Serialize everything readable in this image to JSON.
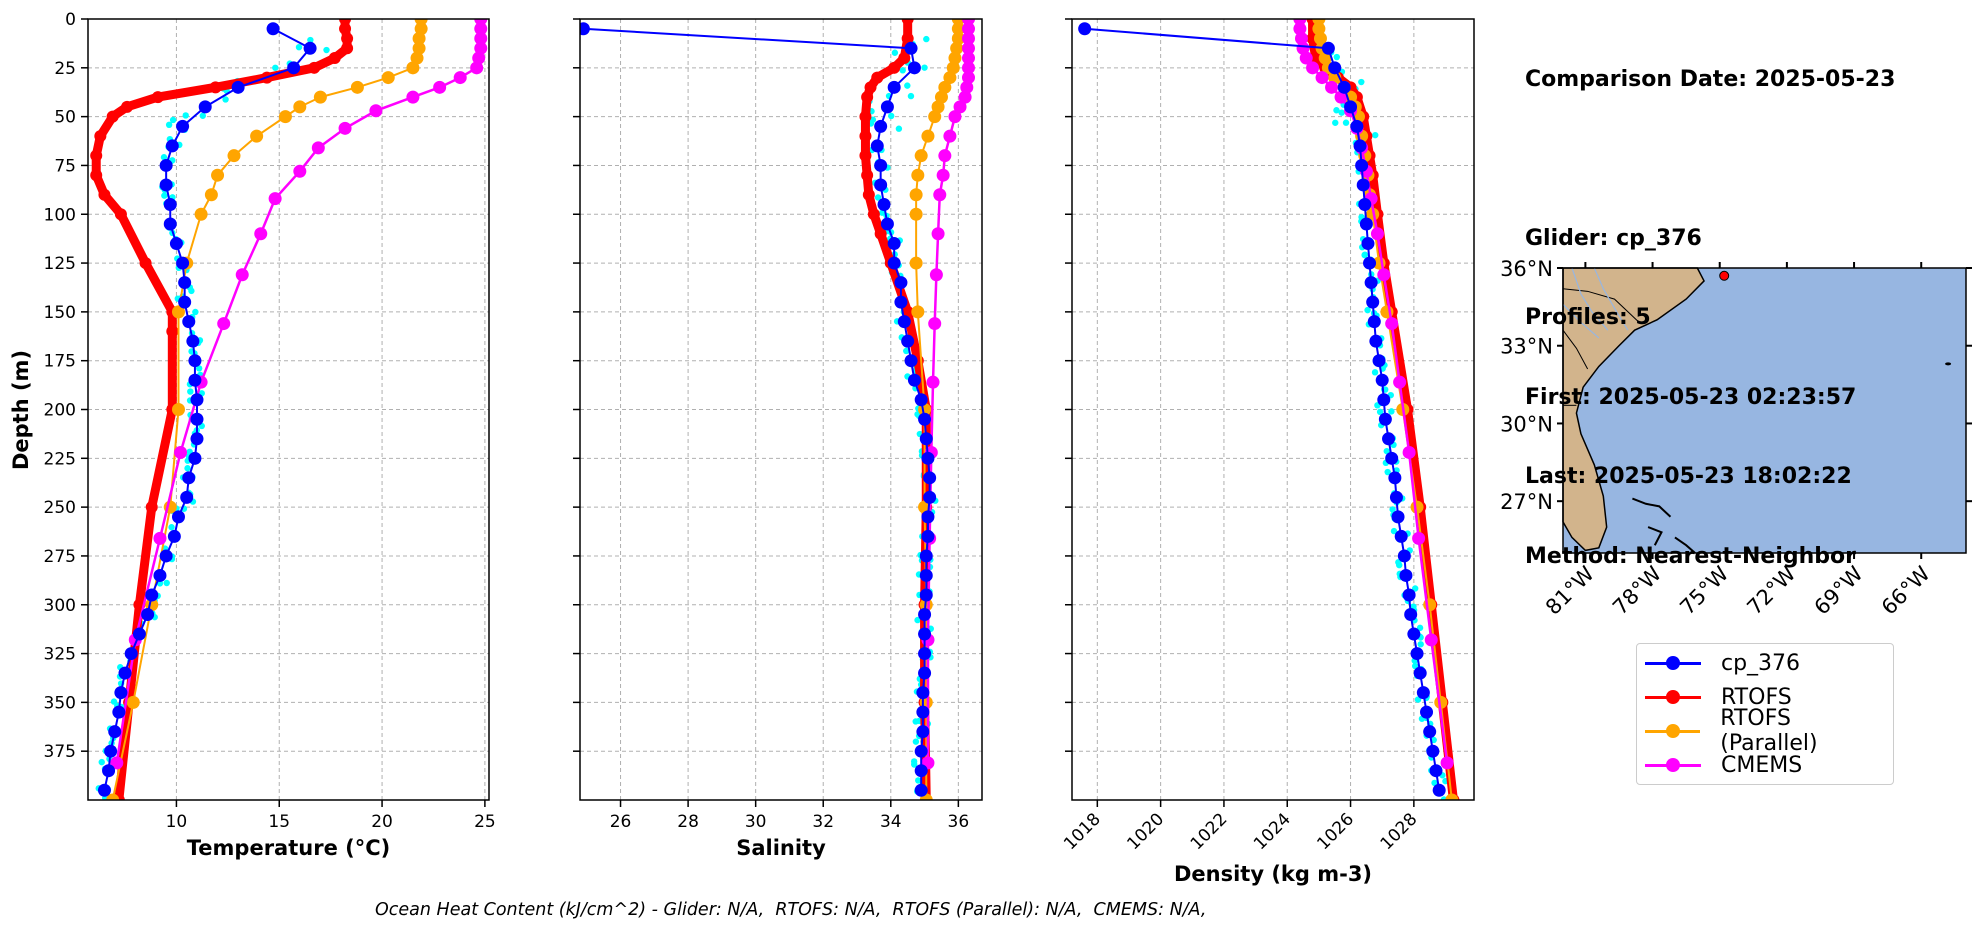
{
  "info": {
    "comparison_date": "Comparison Date: 2025-05-23",
    "glider": "Glider: cp_376",
    "profiles": "Profiles: 5",
    "first": "First: 2025-05-23 02:23:57",
    "last": "Last: 2025-05-23 18:02:22",
    "method": "Method: Nearest-Neighbor"
  },
  "footer": "Ocean Heat Content (kJ/cm^2) - Glider: N/A,  RTOFS: N/A,  RTOFS (Parallel): N/A,  CMEMS: N/A,",
  "legend": [
    {
      "label": "cp_376",
      "color": "#0000ff"
    },
    {
      "label": "RTOFS",
      "color": "#ff0000"
    },
    {
      "label": "RTOFS (Parallel)",
      "color": "#ffa500"
    },
    {
      "label": "CMEMS",
      "color": "#ff00ff"
    }
  ],
  "colors": {
    "glider": "#0000ff",
    "glider_raw": "#00ffff",
    "rtofs": "#ff0000",
    "rtofs_parallel": "#ffa500",
    "cmems": "#ff00ff",
    "land": "#d2b48c",
    "ocean": "#97b6e1"
  },
  "chart_data": [
    {
      "type": "line",
      "title": "",
      "xlabel": "Temperature (°C)",
      "ylabel": "Depth (m)",
      "xlim": [
        5.7,
        25.2
      ],
      "ylim": [
        400,
        0
      ],
      "xticks": [
        10,
        15,
        20,
        25
      ],
      "yticks": [
        0,
        25,
        50,
        75,
        100,
        125,
        150,
        175,
        200,
        225,
        250,
        275,
        300,
        325,
        350,
        375
      ],
      "grid": true,
      "series": [
        {
          "name": "cp_376",
          "depth": [
            5,
            15,
            25,
            35,
            45,
            55,
            65,
            75,
            85,
            95,
            105,
            115,
            125,
            135,
            145,
            155,
            165,
            175,
            185,
            195,
            205,
            215,
            225,
            235,
            245,
            255,
            265,
            275,
            285,
            295,
            305,
            315,
            325,
            335,
            345,
            355,
            365,
            375,
            385,
            395
          ],
          "values": [
            14.7,
            16.5,
            15.7,
            13.0,
            11.4,
            10.3,
            9.8,
            9.5,
            9.5,
            9.7,
            9.7,
            10.0,
            10.3,
            10.4,
            10.4,
            10.6,
            10.8,
            10.9,
            10.9,
            11.0,
            11.0,
            11.0,
            10.9,
            10.6,
            10.5,
            10.1,
            9.9,
            9.5,
            9.2,
            8.8,
            8.6,
            8.2,
            7.8,
            7.5,
            7.3,
            7.2,
            7.0,
            6.8,
            6.7,
            6.5
          ]
        },
        {
          "name": "RTOFS",
          "depth": [
            0,
            5,
            10,
            15,
            20,
            25,
            30,
            35,
            40,
            45,
            50,
            60,
            70,
            80,
            90,
            100,
            125,
            150,
            160,
            200,
            250,
            300,
            350,
            400
          ],
          "values": [
            18.2,
            18.2,
            18.3,
            18.3,
            17.7,
            16.7,
            14.4,
            11.9,
            9.1,
            7.6,
            6.9,
            6.3,
            6.1,
            6.1,
            6.5,
            7.3,
            8.5,
            9.8,
            9.8,
            9.8,
            8.8,
            8.2,
            7.7,
            7.2
          ]
        },
        {
          "name": "RTOFS (Parallel)",
          "depth": [
            0,
            5,
            10,
            15,
            20,
            25,
            30,
            35,
            40,
            45,
            50,
            60,
            70,
            80,
            90,
            100,
            125,
            150,
            200,
            250,
            300,
            350,
            400
          ],
          "values": [
            21.9,
            21.9,
            21.8,
            21.8,
            21.7,
            21.5,
            20.3,
            18.8,
            17.0,
            16.0,
            15.3,
            13.9,
            12.8,
            12.0,
            11.7,
            11.2,
            10.5,
            10.1,
            10.1,
            9.7,
            8.8,
            7.9,
            6.9
          ]
        },
        {
          "name": "CMEMS",
          "depth": [
            0,
            5,
            10,
            15,
            20,
            25,
            30,
            35,
            40,
            47,
            56,
            66,
            78,
            92,
            110,
            131,
            156,
            186,
            222,
            266,
            318,
            381
          ],
          "values": [
            24.8,
            24.8,
            24.8,
            24.8,
            24.7,
            24.6,
            23.8,
            22.8,
            21.5,
            19.7,
            18.2,
            16.9,
            16.0,
            14.8,
            14.1,
            13.2,
            12.3,
            11.2,
            10.2,
            9.2,
            8.0,
            7.1
          ]
        }
      ]
    },
    {
      "type": "line",
      "title": "",
      "xlabel": "Salinity",
      "ylabel": "",
      "xlim": [
        24.8,
        36.7
      ],
      "ylim": [
        400,
        0
      ],
      "xticks": [
        26,
        28,
        30,
        32,
        34,
        36
      ],
      "grid": true,
      "series": [
        {
          "name": "cp_376",
          "depth": [
            5,
            15,
            25,
            35,
            45,
            55,
            65,
            75,
            85,
            95,
            105,
            115,
            125,
            135,
            145,
            155,
            165,
            175,
            185,
            195,
            205,
            215,
            225,
            235,
            245,
            255,
            265,
            275,
            285,
            295,
            305,
            315,
            325,
            335,
            345,
            355,
            365,
            375,
            385,
            395
          ],
          "values": [
            24.9,
            34.6,
            34.7,
            34.1,
            33.9,
            33.7,
            33.6,
            33.7,
            33.7,
            33.8,
            33.9,
            34.1,
            34.1,
            34.3,
            34.3,
            34.4,
            34.5,
            34.6,
            34.7,
            34.9,
            35.0,
            35.05,
            35.1,
            35.15,
            35.15,
            35.1,
            35.1,
            35.05,
            35.05,
            35.05,
            35.0,
            35.0,
            35.0,
            35.0,
            34.95,
            34.95,
            34.95,
            34.9,
            34.9,
            34.9
          ]
        },
        {
          "name": "RTOFS",
          "depth": [
            0,
            10,
            20,
            25,
            30,
            35,
            40,
            50,
            60,
            70,
            80,
            90,
            100,
            110,
            125,
            150,
            175,
            200,
            250,
            300,
            350,
            400
          ],
          "values": [
            34.5,
            34.5,
            34.4,
            34.1,
            33.6,
            33.4,
            33.3,
            33.25,
            33.25,
            33.25,
            33.3,
            33.35,
            33.5,
            33.7,
            34.0,
            34.5,
            34.8,
            35.05,
            35.05,
            35.0,
            35.0,
            35.05
          ]
        },
        {
          "name": "RTOFS (Parallel)",
          "depth": [
            0,
            5,
            10,
            15,
            20,
            25,
            30,
            35,
            40,
            45,
            50,
            60,
            70,
            80,
            90,
            100,
            125,
            150,
            200,
            250,
            300,
            350,
            400
          ],
          "values": [
            36.0,
            36.0,
            36.0,
            35.95,
            35.9,
            35.85,
            35.75,
            35.6,
            35.5,
            35.4,
            35.3,
            35.1,
            34.9,
            34.8,
            34.75,
            34.75,
            34.75,
            34.8,
            35.0,
            35.0,
            35.05,
            35.05,
            35.05
          ]
        },
        {
          "name": "CMEMS",
          "depth": [
            0,
            5,
            10,
            15,
            20,
            25,
            30,
            35,
            40,
            45,
            50,
            60,
            70,
            80,
            90,
            110,
            131,
            156,
            186,
            222,
            266,
            318,
            381
          ],
          "values": [
            36.3,
            36.3,
            36.3,
            36.3,
            36.3,
            36.3,
            36.3,
            36.25,
            36.2,
            36.05,
            35.9,
            35.75,
            35.6,
            35.55,
            35.45,
            35.4,
            35.35,
            35.3,
            35.25,
            35.2,
            35.15,
            35.1,
            35.1
          ]
        }
      ]
    },
    {
      "type": "line",
      "title": "",
      "xlabel": "Density (kg m-3)",
      "ylabel": "",
      "xlim": [
        1017.2,
        1029.9
      ],
      "ylim": [
        400,
        0
      ],
      "xticks": [
        1018,
        1020,
        1022,
        1024,
        1026,
        1028
      ],
      "grid": true,
      "series": [
        {
          "name": "cp_376",
          "depth": [
            5,
            15,
            25,
            35,
            45,
            55,
            65,
            75,
            85,
            95,
            105,
            115,
            125,
            135,
            145,
            155,
            165,
            175,
            185,
            195,
            205,
            215,
            225,
            235,
            245,
            255,
            265,
            275,
            285,
            295,
            305,
            315,
            325,
            335,
            345,
            355,
            365,
            375,
            385,
            395
          ],
          "values": [
            1017.6,
            1025.3,
            1025.5,
            1025.8,
            1026.0,
            1026.2,
            1026.3,
            1026.35,
            1026.4,
            1026.45,
            1026.5,
            1026.55,
            1026.6,
            1026.65,
            1026.7,
            1026.75,
            1026.8,
            1026.9,
            1027.0,
            1027.05,
            1027.1,
            1027.2,
            1027.3,
            1027.4,
            1027.45,
            1027.5,
            1027.6,
            1027.7,
            1027.75,
            1027.85,
            1027.9,
            1028.0,
            1028.1,
            1028.2,
            1028.3,
            1028.4,
            1028.5,
            1028.6,
            1028.7,
            1028.8
          ]
        },
        {
          "name": "RTOFS",
          "depth": [
            0,
            10,
            20,
            25,
            30,
            35,
            40,
            50,
            60,
            70,
            80,
            100,
            125,
            150,
            200,
            250,
            300,
            350,
            400
          ],
          "values": [
            1024.8,
            1024.8,
            1024.9,
            1025.2,
            1025.6,
            1026.0,
            1026.2,
            1026.4,
            1026.5,
            1026.6,
            1026.7,
            1026.85,
            1027.05,
            1027.3,
            1027.8,
            1028.2,
            1028.55,
            1028.9,
            1029.25
          ]
        },
        {
          "name": "RTOFS (Parallel)",
          "depth": [
            0,
            5,
            10,
            15,
            20,
            25,
            30,
            35,
            40,
            45,
            50,
            60,
            70,
            80,
            90,
            100,
            125,
            150,
            200,
            250,
            300,
            350,
            400
          ],
          "values": [
            1025.0,
            1025.0,
            1025.05,
            1025.1,
            1025.2,
            1025.3,
            1025.5,
            1025.8,
            1026.0,
            1026.15,
            1026.25,
            1026.35,
            1026.45,
            1026.55,
            1026.6,
            1026.7,
            1026.9,
            1027.15,
            1027.65,
            1028.1,
            1028.5,
            1028.85,
            1029.2
          ]
        },
        {
          "name": "CMEMS",
          "depth": [
            0,
            5,
            10,
            15,
            20,
            25,
            30,
            35,
            40,
            47,
            56,
            66,
            78,
            92,
            110,
            131,
            156,
            186,
            222,
            266,
            318,
            381
          ],
          "values": [
            1024.4,
            1024.4,
            1024.45,
            1024.5,
            1024.6,
            1024.8,
            1025.1,
            1025.4,
            1025.7,
            1026.0,
            1026.2,
            1026.35,
            1026.5,
            1026.65,
            1026.85,
            1027.05,
            1027.3,
            1027.55,
            1027.85,
            1028.15,
            1028.55,
            1029.05
          ]
        }
      ]
    },
    {
      "type": "map",
      "title": "",
      "lat_ticks": [
        "36°N",
        "33°N",
        "30°N",
        "27°N"
      ],
      "lon_ticks": [
        "81°W",
        "78°W",
        "75°W",
        "72°W",
        "69°W",
        "66°W"
      ],
      "lon_range": [
        -82,
        -64
      ],
      "lat_range": [
        25,
        36
      ],
      "glider_position": {
        "lon": -74.8,
        "lat": 35.7
      }
    }
  ]
}
